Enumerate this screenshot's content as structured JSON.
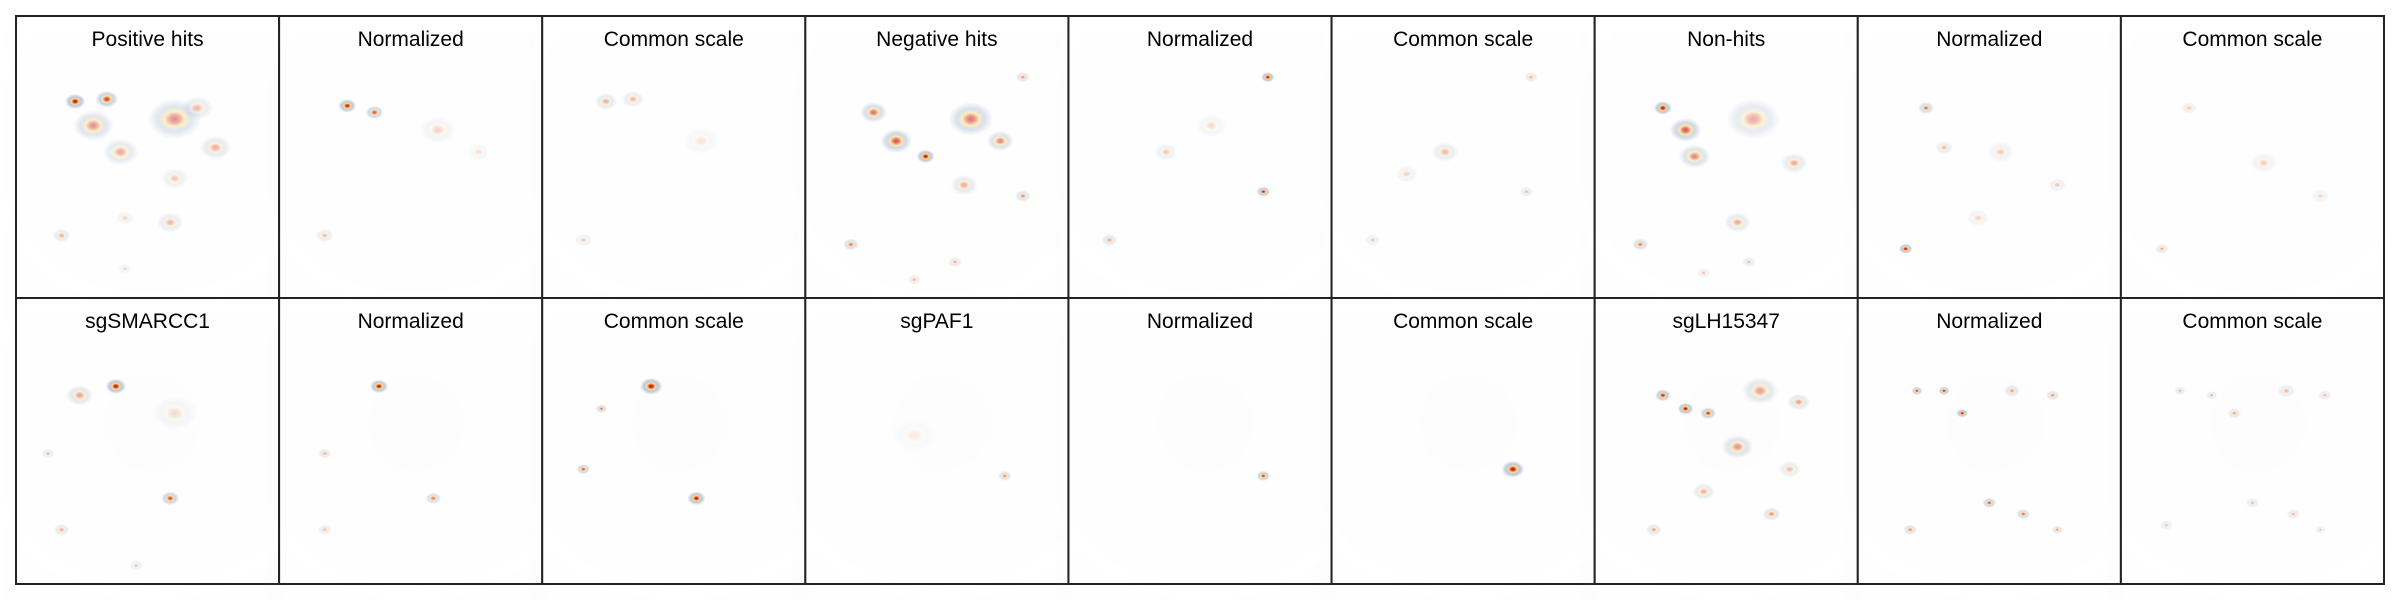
{
  "grid": {
    "rows": 2,
    "cols": 9
  },
  "colors": {
    "background_cells": "#dcdcdc",
    "density_low": "#9fb0d0",
    "density_mid": "#f3e08a",
    "density_high": "#b2001a",
    "panel_border": "#222222"
  },
  "chart_data": [
    {
      "type": "heatmap",
      "title": "Positive hits",
      "scale": "raw",
      "hotspots": [
        {
          "u": 0.18,
          "v": 0.17,
          "w": 1.0,
          "s": 0.045
        },
        {
          "u": 0.32,
          "v": 0.16,
          "w": 0.8,
          "s": 0.05
        },
        {
          "u": 0.26,
          "v": 0.28,
          "w": 0.45,
          "s": 0.09
        },
        {
          "u": 0.38,
          "v": 0.4,
          "w": 0.35,
          "s": 0.08
        },
        {
          "u": 0.62,
          "v": 0.25,
          "w": 0.45,
          "s": 0.12
        },
        {
          "u": 0.8,
          "v": 0.38,
          "w": 0.35,
          "s": 0.07
        },
        {
          "u": 0.62,
          "v": 0.52,
          "w": 0.25,
          "s": 0.06
        },
        {
          "u": 0.72,
          "v": 0.2,
          "w": 0.3,
          "s": 0.07
        },
        {
          "u": 0.12,
          "v": 0.78,
          "w": 0.35,
          "s": 0.04
        },
        {
          "u": 0.6,
          "v": 0.72,
          "w": 0.3,
          "s": 0.06
        },
        {
          "u": 0.4,
          "v": 0.7,
          "w": 0.2,
          "s": 0.04
        },
        {
          "u": 0.4,
          "v": 0.93,
          "w": 0.2,
          "s": 0.03
        }
      ]
    },
    {
      "type": "heatmap",
      "title": "Normalized",
      "scale": "normalized",
      "hotspots": [
        {
          "u": 0.22,
          "v": 0.19,
          "w": 0.95,
          "s": 0.04
        },
        {
          "u": 0.34,
          "v": 0.22,
          "w": 0.7,
          "s": 0.04
        },
        {
          "u": 0.12,
          "v": 0.78,
          "w": 0.3,
          "s": 0.04
        },
        {
          "u": 0.62,
          "v": 0.3,
          "w": 0.18,
          "s": 0.08
        },
        {
          "u": 0.8,
          "v": 0.4,
          "w": 0.15,
          "s": 0.05
        }
      ]
    },
    {
      "type": "heatmap",
      "title": "Common scale",
      "scale": "common",
      "hotspots": [
        {
          "u": 0.2,
          "v": 0.17,
          "w": 0.35,
          "s": 0.05
        },
        {
          "u": 0.32,
          "v": 0.16,
          "w": 0.3,
          "s": 0.05
        },
        {
          "u": 0.1,
          "v": 0.8,
          "w": 0.22,
          "s": 0.04
        },
        {
          "u": 0.62,
          "v": 0.35,
          "w": 0.12,
          "s": 0.08
        }
      ]
    },
    {
      "type": "heatmap",
      "title": "Negative hits",
      "scale": "raw",
      "hotspots": [
        {
          "u": 0.45,
          "v": 0.42,
          "w": 1.0,
          "s": 0.04
        },
        {
          "u": 0.32,
          "v": 0.35,
          "w": 0.7,
          "s": 0.07
        },
        {
          "u": 0.22,
          "v": 0.22,
          "w": 0.6,
          "s": 0.06
        },
        {
          "u": 0.65,
          "v": 0.25,
          "w": 0.55,
          "s": 0.1
        },
        {
          "u": 0.78,
          "v": 0.35,
          "w": 0.5,
          "s": 0.06
        },
        {
          "u": 0.88,
          "v": 0.06,
          "w": 0.45,
          "s": 0.03
        },
        {
          "u": 0.88,
          "v": 0.6,
          "w": 0.45,
          "s": 0.035
        },
        {
          "u": 0.12,
          "v": 0.82,
          "w": 0.55,
          "s": 0.035
        },
        {
          "u": 0.58,
          "v": 0.9,
          "w": 0.35,
          "s": 0.03
        },
        {
          "u": 0.4,
          "v": 0.98,
          "w": 0.3,
          "s": 0.03
        },
        {
          "u": 0.62,
          "v": 0.55,
          "w": 0.35,
          "s": 0.06
        }
      ]
    },
    {
      "type": "heatmap",
      "title": "Normalized",
      "scale": "normalized",
      "hotspots": [
        {
          "u": 0.8,
          "v": 0.06,
          "w": 1.0,
          "s": 0.03
        },
        {
          "u": 0.78,
          "v": 0.58,
          "w": 0.9,
          "s": 0.03
        },
        {
          "u": 0.1,
          "v": 0.8,
          "w": 0.4,
          "s": 0.035
        },
        {
          "u": 0.35,
          "v": 0.4,
          "w": 0.25,
          "s": 0.05
        },
        {
          "u": 0.55,
          "v": 0.28,
          "w": 0.15,
          "s": 0.07
        }
      ]
    },
    {
      "type": "heatmap",
      "title": "Common scale",
      "scale": "common",
      "hotspots": [
        {
          "u": 0.8,
          "v": 0.06,
          "w": 0.35,
          "s": 0.03
        },
        {
          "u": 0.78,
          "v": 0.58,
          "w": 0.3,
          "s": 0.03
        },
        {
          "u": 0.1,
          "v": 0.8,
          "w": 0.25,
          "s": 0.035
        },
        {
          "u": 0.42,
          "v": 0.4,
          "w": 0.3,
          "s": 0.06
        },
        {
          "u": 0.25,
          "v": 0.5,
          "w": 0.2,
          "s": 0.05
        }
      ]
    },
    {
      "type": "heatmap",
      "title": "Non-hits",
      "scale": "raw",
      "hotspots": [
        {
          "u": 0.22,
          "v": 0.2,
          "w": 1.0,
          "s": 0.04
        },
        {
          "u": 0.32,
          "v": 0.3,
          "w": 0.7,
          "s": 0.07
        },
        {
          "u": 0.36,
          "v": 0.42,
          "w": 0.5,
          "s": 0.07
        },
        {
          "u": 0.62,
          "v": 0.25,
          "w": 0.35,
          "s": 0.12
        },
        {
          "u": 0.8,
          "v": 0.45,
          "w": 0.35,
          "s": 0.06
        },
        {
          "u": 0.12,
          "v": 0.82,
          "w": 0.55,
          "s": 0.035
        },
        {
          "u": 0.55,
          "v": 0.72,
          "w": 0.35,
          "s": 0.06
        },
        {
          "u": 0.6,
          "v": 0.9,
          "w": 0.3,
          "s": 0.03
        },
        {
          "u": 0.4,
          "v": 0.95,
          "w": 0.25,
          "s": 0.03
        }
      ]
    },
    {
      "type": "heatmap",
      "title": "Normalized",
      "scale": "normalized",
      "hotspots": [
        {
          "u": 0.13,
          "v": 0.84,
          "w": 1.0,
          "s": 0.03
        },
        {
          "u": 0.22,
          "v": 0.2,
          "w": 0.6,
          "s": 0.035
        },
        {
          "u": 0.3,
          "v": 0.38,
          "w": 0.3,
          "s": 0.04
        },
        {
          "u": 0.55,
          "v": 0.4,
          "w": 0.22,
          "s": 0.06
        },
        {
          "u": 0.8,
          "v": 0.55,
          "w": 0.25,
          "s": 0.04
        },
        {
          "u": 0.45,
          "v": 0.7,
          "w": 0.2,
          "s": 0.05
        }
      ]
    },
    {
      "type": "heatmap",
      "title": "Common scale",
      "scale": "common",
      "hotspots": [
        {
          "u": 0.1,
          "v": 0.84,
          "w": 0.35,
          "s": 0.03
        },
        {
          "u": 0.22,
          "v": 0.2,
          "w": 0.25,
          "s": 0.035
        },
        {
          "u": 0.55,
          "v": 0.45,
          "w": 0.2,
          "s": 0.06
        },
        {
          "u": 0.8,
          "v": 0.6,
          "w": 0.2,
          "s": 0.04
        }
      ]
    },
    {
      "type": "heatmap",
      "title": "sgSMARCC1",
      "scale": "raw",
      "hotspots": [
        {
          "u": 0.36,
          "v": 0.18,
          "w": 1.0,
          "s": 0.045
        },
        {
          "u": 0.2,
          "v": 0.22,
          "w": 0.4,
          "s": 0.06
        },
        {
          "u": 0.6,
          "v": 0.68,
          "w": 0.75,
          "s": 0.04
        },
        {
          "u": 0.12,
          "v": 0.82,
          "w": 0.35,
          "s": 0.035
        },
        {
          "u": 0.06,
          "v": 0.48,
          "w": 0.3,
          "s": 0.03
        },
        {
          "u": 0.45,
          "v": 0.98,
          "w": 0.25,
          "s": 0.03
        },
        {
          "u": 0.62,
          "v": 0.3,
          "w": 0.15,
          "s": 0.1
        }
      ]
    },
    {
      "type": "heatmap",
      "title": "Normalized",
      "scale": "normalized",
      "hotspots": [
        {
          "u": 0.36,
          "v": 0.18,
          "w": 1.0,
          "s": 0.04
        },
        {
          "u": 0.6,
          "v": 0.68,
          "w": 0.55,
          "s": 0.035
        },
        {
          "u": 0.12,
          "v": 0.48,
          "w": 0.35,
          "s": 0.03
        },
        {
          "u": 0.12,
          "v": 0.82,
          "w": 0.3,
          "s": 0.03
        }
      ]
    },
    {
      "type": "heatmap",
      "title": "Common scale",
      "scale": "common",
      "hotspots": [
        {
          "u": 0.4,
          "v": 0.18,
          "w": 1.2,
          "s": 0.05
        },
        {
          "u": 0.6,
          "v": 0.68,
          "w": 1.1,
          "s": 0.04
        },
        {
          "u": 0.1,
          "v": 0.55,
          "w": 0.7,
          "s": 0.03
        },
        {
          "u": 0.18,
          "v": 0.28,
          "w": 0.6,
          "s": 0.025
        }
      ]
    },
    {
      "type": "heatmap",
      "title": "sgPAF1",
      "scale": "raw",
      "hotspots": [
        {
          "u": 0.8,
          "v": 0.58,
          "w": 0.5,
          "s": 0.03
        },
        {
          "u": 0.4,
          "v": 0.4,
          "w": 0.08,
          "s": 0.1
        }
      ]
    },
    {
      "type": "heatmap",
      "title": "Normalized",
      "scale": "normalized",
      "hotspots": [
        {
          "u": 0.78,
          "v": 0.58,
          "w": 0.8,
          "s": 0.03
        }
      ]
    },
    {
      "type": "heatmap",
      "title": "Common scale",
      "scale": "common",
      "hotspots": [
        {
          "u": 0.72,
          "v": 0.55,
          "w": 1.4,
          "s": 0.05
        }
      ]
    },
    {
      "type": "heatmap",
      "title": "sgLH15347",
      "scale": "raw",
      "hotspots": [
        {
          "u": 0.22,
          "v": 0.22,
          "w": 0.9,
          "s": 0.035
        },
        {
          "u": 0.32,
          "v": 0.28,
          "w": 1.0,
          "s": 0.035
        },
        {
          "u": 0.42,
          "v": 0.3,
          "w": 0.8,
          "s": 0.035
        },
        {
          "u": 0.55,
          "v": 0.45,
          "w": 0.45,
          "s": 0.07
        },
        {
          "u": 0.65,
          "v": 0.2,
          "w": 0.4,
          "s": 0.08
        },
        {
          "u": 0.82,
          "v": 0.25,
          "w": 0.4,
          "s": 0.05
        },
        {
          "u": 0.4,
          "v": 0.65,
          "w": 0.35,
          "s": 0.05
        },
        {
          "u": 0.7,
          "v": 0.75,
          "w": 0.45,
          "s": 0.04
        },
        {
          "u": 0.18,
          "v": 0.82,
          "w": 0.4,
          "s": 0.035
        },
        {
          "u": 0.78,
          "v": 0.55,
          "w": 0.3,
          "s": 0.05
        }
      ]
    },
    {
      "type": "heatmap",
      "title": "Normalized",
      "scale": "normalized",
      "hotspots": [
        {
          "u": 0.18,
          "v": 0.2,
          "w": 0.8,
          "s": 0.025
        },
        {
          "u": 0.3,
          "v": 0.2,
          "w": 0.9,
          "s": 0.025
        },
        {
          "u": 0.38,
          "v": 0.3,
          "w": 1.0,
          "s": 0.025
        },
        {
          "u": 0.6,
          "v": 0.2,
          "w": 0.4,
          "s": 0.035
        },
        {
          "u": 0.78,
          "v": 0.22,
          "w": 0.45,
          "s": 0.03
        },
        {
          "u": 0.5,
          "v": 0.7,
          "w": 0.7,
          "s": 0.03
        },
        {
          "u": 0.65,
          "v": 0.75,
          "w": 0.6,
          "s": 0.03
        },
        {
          "u": 0.8,
          "v": 0.82,
          "w": 0.45,
          "s": 0.025
        },
        {
          "u": 0.15,
          "v": 0.82,
          "w": 0.5,
          "s": 0.03
        }
      ]
    },
    {
      "type": "heatmap",
      "title": "Common scale",
      "scale": "common",
      "hotspots": [
        {
          "u": 0.18,
          "v": 0.2,
          "w": 0.35,
          "s": 0.025
        },
        {
          "u": 0.32,
          "v": 0.22,
          "w": 0.35,
          "s": 0.025
        },
        {
          "u": 0.42,
          "v": 0.3,
          "w": 0.4,
          "s": 0.03
        },
        {
          "u": 0.65,
          "v": 0.2,
          "w": 0.3,
          "s": 0.04
        },
        {
          "u": 0.82,
          "v": 0.22,
          "w": 0.3,
          "s": 0.03
        },
        {
          "u": 0.5,
          "v": 0.7,
          "w": 0.3,
          "s": 0.03
        },
        {
          "u": 0.68,
          "v": 0.75,
          "w": 0.3,
          "s": 0.03
        },
        {
          "u": 0.8,
          "v": 0.82,
          "w": 0.25,
          "s": 0.025
        },
        {
          "u": 0.12,
          "v": 0.8,
          "w": 0.25,
          "s": 0.03
        }
      ]
    }
  ]
}
